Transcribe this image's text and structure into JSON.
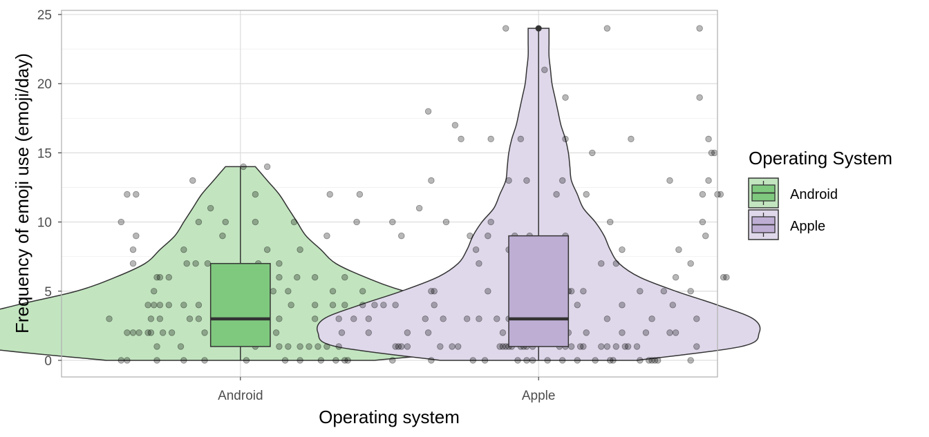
{
  "chart_data": {
    "type": "violin",
    "xlabel": "Operating system",
    "ylabel": "Frequency of emoji use (emoji/day)",
    "categories": [
      "Android",
      "Apple"
    ],
    "ylim": [
      -1.2,
      25.3
    ],
    "yticks": [
      0,
      5,
      10,
      15,
      20,
      25
    ],
    "grid": true,
    "legend": {
      "title": "Operating System",
      "position": "right",
      "entries": [
        {
          "name": "Android",
          "fill": "#7fc97f",
          "violin_fill": "#c2e5bf"
        },
        {
          "name": "Apple",
          "fill": "#beaed4",
          "violin_fill": "#dfd8ea"
        }
      ]
    },
    "series": [
      {
        "name": "Android",
        "box": {
          "q1": 1,
          "median": 3,
          "q3": 7,
          "whisker_low": 0,
          "whisker_high": 14
        },
        "violin_max": 14,
        "violin_halfwidths": [
          [
            0,
            0.45
          ],
          [
            1,
            0.9
          ],
          [
            2,
            0.98
          ],
          [
            3,
            0.92
          ],
          [
            4,
            0.75
          ],
          [
            5,
            0.55
          ],
          [
            6,
            0.42
          ],
          [
            7,
            0.32
          ],
          [
            8,
            0.27
          ],
          [
            9,
            0.22
          ],
          [
            10,
            0.19
          ],
          [
            11,
            0.16
          ],
          [
            12,
            0.13
          ],
          [
            13,
            0.09
          ],
          [
            14,
            0.05
          ]
        ],
        "points": [
          [
            -0.4,
            0
          ],
          [
            -0.38,
            0
          ],
          [
            -0.28,
            0
          ],
          [
            -0.19,
            0
          ],
          [
            -0.12,
            0
          ],
          [
            0.02,
            0
          ],
          [
            0.15,
            0
          ],
          [
            0.2,
            0
          ],
          [
            0.27,
            0
          ],
          [
            0.32,
            0
          ],
          [
            0.35,
            0
          ],
          [
            0.36,
            0
          ],
          [
            0.51,
            0
          ],
          [
            -0.28,
            1
          ],
          [
            -0.2,
            1
          ],
          [
            0.05,
            1
          ],
          [
            0.13,
            1
          ],
          [
            0.16,
            1
          ],
          [
            0.2,
            1
          ],
          [
            0.23,
            1
          ],
          [
            0.26,
            1
          ],
          [
            0.29,
            1
          ],
          [
            0.33,
            1
          ],
          [
            0.52,
            1
          ],
          [
            0.53,
            1
          ],
          [
            0.54,
            1
          ],
          [
            0.56,
            1
          ],
          [
            -0.38,
            2
          ],
          [
            -0.36,
            2
          ],
          [
            -0.34,
            2
          ],
          [
            -0.31,
            2
          ],
          [
            -0.3,
            2
          ],
          [
            -0.26,
            2
          ],
          [
            -0.23,
            2
          ],
          [
            -0.12,
            2
          ],
          [
            -0.07,
            2
          ],
          [
            -0.04,
            2
          ],
          [
            -0.01,
            2
          ],
          [
            0.02,
            2
          ],
          [
            0.03,
            2
          ],
          [
            0.08,
            2
          ],
          [
            0.12,
            2
          ],
          [
            0.34,
            2
          ],
          [
            0.43,
            2
          ],
          [
            0.56,
            2
          ],
          [
            0.63,
            2
          ],
          [
            -0.44,
            3
          ],
          [
            -0.3,
            3
          ],
          [
            -0.27,
            3
          ],
          [
            -0.17,
            3
          ],
          [
            -0.14,
            3
          ],
          [
            -0.04,
            3
          ],
          [
            0.13,
            3
          ],
          [
            0.25,
            3
          ],
          [
            0.33,
            3
          ],
          [
            0.38,
            3
          ],
          [
            0.43,
            3
          ],
          [
            -0.31,
            4
          ],
          [
            -0.29,
            4
          ],
          [
            -0.27,
            4
          ],
          [
            -0.24,
            4
          ],
          [
            -0.19,
            4
          ],
          [
            -0.14,
            4
          ],
          [
            -0.04,
            4
          ],
          [
            -0.03,
            4
          ],
          [
            0.17,
            4
          ],
          [
            0.25,
            4
          ],
          [
            0.31,
            4
          ],
          [
            0.35,
            4
          ],
          [
            0.41,
            4
          ],
          [
            0.45,
            4
          ],
          [
            0.48,
            4
          ],
          [
            0.52,
            4
          ],
          [
            -0.29,
            5
          ],
          [
            -0.04,
            5
          ],
          [
            0.11,
            5
          ],
          [
            0.16,
            5
          ],
          [
            0.31,
            5
          ],
          [
            0.41,
            5
          ],
          [
            0.65,
            5
          ],
          [
            -0.28,
            6
          ],
          [
            -0.27,
            6
          ],
          [
            -0.24,
            6
          ],
          [
            0.13,
            6
          ],
          [
            0.19,
            6
          ],
          [
            0.25,
            6
          ],
          [
            0.35,
            6
          ],
          [
            -0.36,
            7
          ],
          [
            -0.18,
            7
          ],
          [
            -0.15,
            7
          ],
          [
            -0.11,
            7
          ],
          [
            0.06,
            7
          ],
          [
            0.13,
            7
          ],
          [
            -0.36,
            8
          ],
          [
            -0.19,
            8
          ],
          [
            0.09,
            8
          ],
          [
            0.2,
            8
          ],
          [
            -0.35,
            9
          ],
          [
            -0.06,
            9
          ],
          [
            0.29,
            9
          ],
          [
            0.54,
            9
          ],
          [
            -0.4,
            10
          ],
          [
            -0.14,
            10
          ],
          [
            -0.05,
            10
          ],
          [
            0.05,
            10
          ],
          [
            0.18,
            10
          ],
          [
            0.39,
            10
          ],
          [
            0.51,
            10
          ],
          [
            -0.1,
            11
          ],
          [
            -0.38,
            12
          ],
          [
            -0.35,
            12
          ],
          [
            0.05,
            12
          ],
          [
            0.3,
            12
          ],
          [
            0.4,
            12
          ],
          [
            -0.16,
            13
          ],
          [
            0.01,
            14
          ],
          [
            0.09,
            14
          ]
        ]
      },
      {
        "name": "Apple",
        "box": {
          "q1": 1,
          "median": 3,
          "q3": 9,
          "whisker_low": 0,
          "whisker_high": 24
        },
        "violin_max": 24,
        "violin_halfwidths": [
          [
            0,
            0.33
          ],
          [
            1,
            0.68
          ],
          [
            2,
            0.74
          ],
          [
            3,
            0.72
          ],
          [
            4,
            0.6
          ],
          [
            5,
            0.46
          ],
          [
            6,
            0.34
          ],
          [
            7,
            0.27
          ],
          [
            8,
            0.24
          ],
          [
            9,
            0.22
          ],
          [
            10,
            0.19
          ],
          [
            11,
            0.15
          ],
          [
            12,
            0.13
          ],
          [
            13,
            0.11
          ],
          [
            14,
            0.105
          ],
          [
            15,
            0.1
          ],
          [
            16,
            0.09
          ],
          [
            17,
            0.075
          ],
          [
            18,
            0.065
          ],
          [
            19,
            0.055
          ],
          [
            20,
            0.045
          ],
          [
            21,
            0.04
          ],
          [
            22,
            0.035
          ],
          [
            23,
            0.035
          ],
          [
            24,
            0.035
          ]
        ],
        "points": [
          [
            -0.36,
            0
          ],
          [
            -0.22,
            0
          ],
          [
            -0.18,
            0
          ],
          [
            -0.07,
            0
          ],
          [
            -0.04,
            0
          ],
          [
            -0.02,
            0
          ],
          [
            0.03,
            0
          ],
          [
            0.08,
            0
          ],
          [
            0.13,
            0
          ],
          [
            0.19,
            0
          ],
          [
            0.24,
            0
          ],
          [
            0.25,
            0
          ],
          [
            0.34,
            0
          ],
          [
            0.37,
            0
          ],
          [
            0.38,
            0
          ],
          [
            0.39,
            0
          ],
          [
            0.4,
            0
          ],
          [
            0.51,
            0
          ],
          [
            -0.33,
            1
          ],
          [
            -0.29,
            1
          ],
          [
            -0.27,
            1
          ],
          [
            -0.13,
            1
          ],
          [
            -0.12,
            1
          ],
          [
            -0.11,
            1
          ],
          [
            -0.1,
            1
          ],
          [
            -0.09,
            1
          ],
          [
            -0.06,
            1
          ],
          [
            -0.05,
            1
          ],
          [
            -0.04,
            1
          ],
          [
            -0.02,
            1
          ],
          [
            0.07,
            1
          ],
          [
            0.09,
            1
          ],
          [
            0.11,
            1
          ],
          [
            0.14,
            1
          ],
          [
            0.15,
            1
          ],
          [
            0.21,
            1
          ],
          [
            0.23,
            1
          ],
          [
            0.26,
            1
          ],
          [
            0.29,
            1
          ],
          [
            0.3,
            1
          ],
          [
            0.33,
            1
          ],
          [
            0.53,
            1
          ],
          [
            -0.12,
            2
          ],
          [
            -0.08,
            2
          ],
          [
            0.02,
            2
          ],
          [
            0.07,
            2
          ],
          [
            0.1,
            2
          ],
          [
            0.16,
            2
          ],
          [
            0.28,
            2
          ],
          [
            0.36,
            2
          ],
          [
            0.44,
            2
          ],
          [
            0.46,
            2
          ],
          [
            -0.38,
            3
          ],
          [
            -0.32,
            3
          ],
          [
            -0.24,
            3
          ],
          [
            -0.2,
            3
          ],
          [
            -0.14,
            3
          ],
          [
            -0.1,
            3
          ],
          [
            -0.07,
            3
          ],
          [
            -0.05,
            3
          ],
          [
            -0.04,
            3
          ],
          [
            0.07,
            3
          ],
          [
            0.23,
            3
          ],
          [
            0.38,
            3
          ],
          [
            0.53,
            3
          ],
          [
            -0.35,
            4
          ],
          [
            -0.07,
            4
          ],
          [
            0.06,
            4
          ],
          [
            0.13,
            4
          ],
          [
            0.28,
            4
          ],
          [
            0.45,
            4
          ],
          [
            -0.36,
            5
          ],
          [
            -0.17,
            5
          ],
          [
            0.03,
            5
          ],
          [
            0.09,
            5
          ],
          [
            0.1,
            5
          ],
          [
            0.11,
            5
          ],
          [
            0.15,
            5
          ],
          [
            0.34,
            5
          ],
          [
            0.42,
            5
          ],
          [
            0.51,
            5
          ],
          [
            -0.08,
            6
          ],
          [
            0.05,
            6
          ],
          [
            0.06,
            6
          ],
          [
            0.08,
            6
          ],
          [
            0.46,
            6
          ],
          [
            0.62,
            6
          ],
          [
            0.63,
            6
          ],
          [
            -0.2,
            7
          ],
          [
            -0.06,
            7
          ],
          [
            0.09,
            7
          ],
          [
            0.21,
            7
          ],
          [
            0.26,
            7
          ],
          [
            0.51,
            7
          ],
          [
            -0.21,
            8
          ],
          [
            -0.1,
            8
          ],
          [
            -0.06,
            8
          ],
          [
            0.06,
            8
          ],
          [
            0.28,
            8
          ],
          [
            0.47,
            8
          ],
          [
            -0.23,
            9
          ],
          [
            -0.17,
            9
          ],
          [
            -0.08,
            9
          ],
          [
            -0.03,
            9
          ],
          [
            0.09,
            9
          ],
          [
            0.56,
            9
          ],
          [
            -0.31,
            10
          ],
          [
            -0.16,
            10
          ],
          [
            0.24,
            10
          ],
          [
            0.55,
            10
          ],
          [
            -0.4,
            11
          ],
          [
            0.06,
            12
          ],
          [
            0.16,
            12
          ],
          [
            0.55,
            12
          ],
          [
            0.6,
            12
          ],
          [
            0.61,
            12
          ],
          [
            -0.36,
            13
          ],
          [
            -0.1,
            13
          ],
          [
            -0.04,
            13
          ],
          [
            0.08,
            13
          ],
          [
            0.44,
            13
          ],
          [
            0.57,
            13
          ],
          [
            0.18,
            15
          ],
          [
            0.58,
            15
          ],
          [
            0.59,
            15
          ],
          [
            -0.26,
            16
          ],
          [
            -0.16,
            16
          ],
          [
            -0.06,
            16
          ],
          [
            0.09,
            16
          ],
          [
            0.31,
            16
          ],
          [
            0.57,
            16
          ],
          [
            -0.28,
            17
          ],
          [
            -0.37,
            18
          ],
          [
            0.09,
            19
          ],
          [
            0.54,
            19
          ],
          [
            0.02,
            21
          ],
          [
            -0.11,
            24
          ],
          [
            0.0,
            24
          ],
          [
            0.23,
            24
          ],
          [
            0.54,
            24
          ]
        ]
      }
    ]
  }
}
